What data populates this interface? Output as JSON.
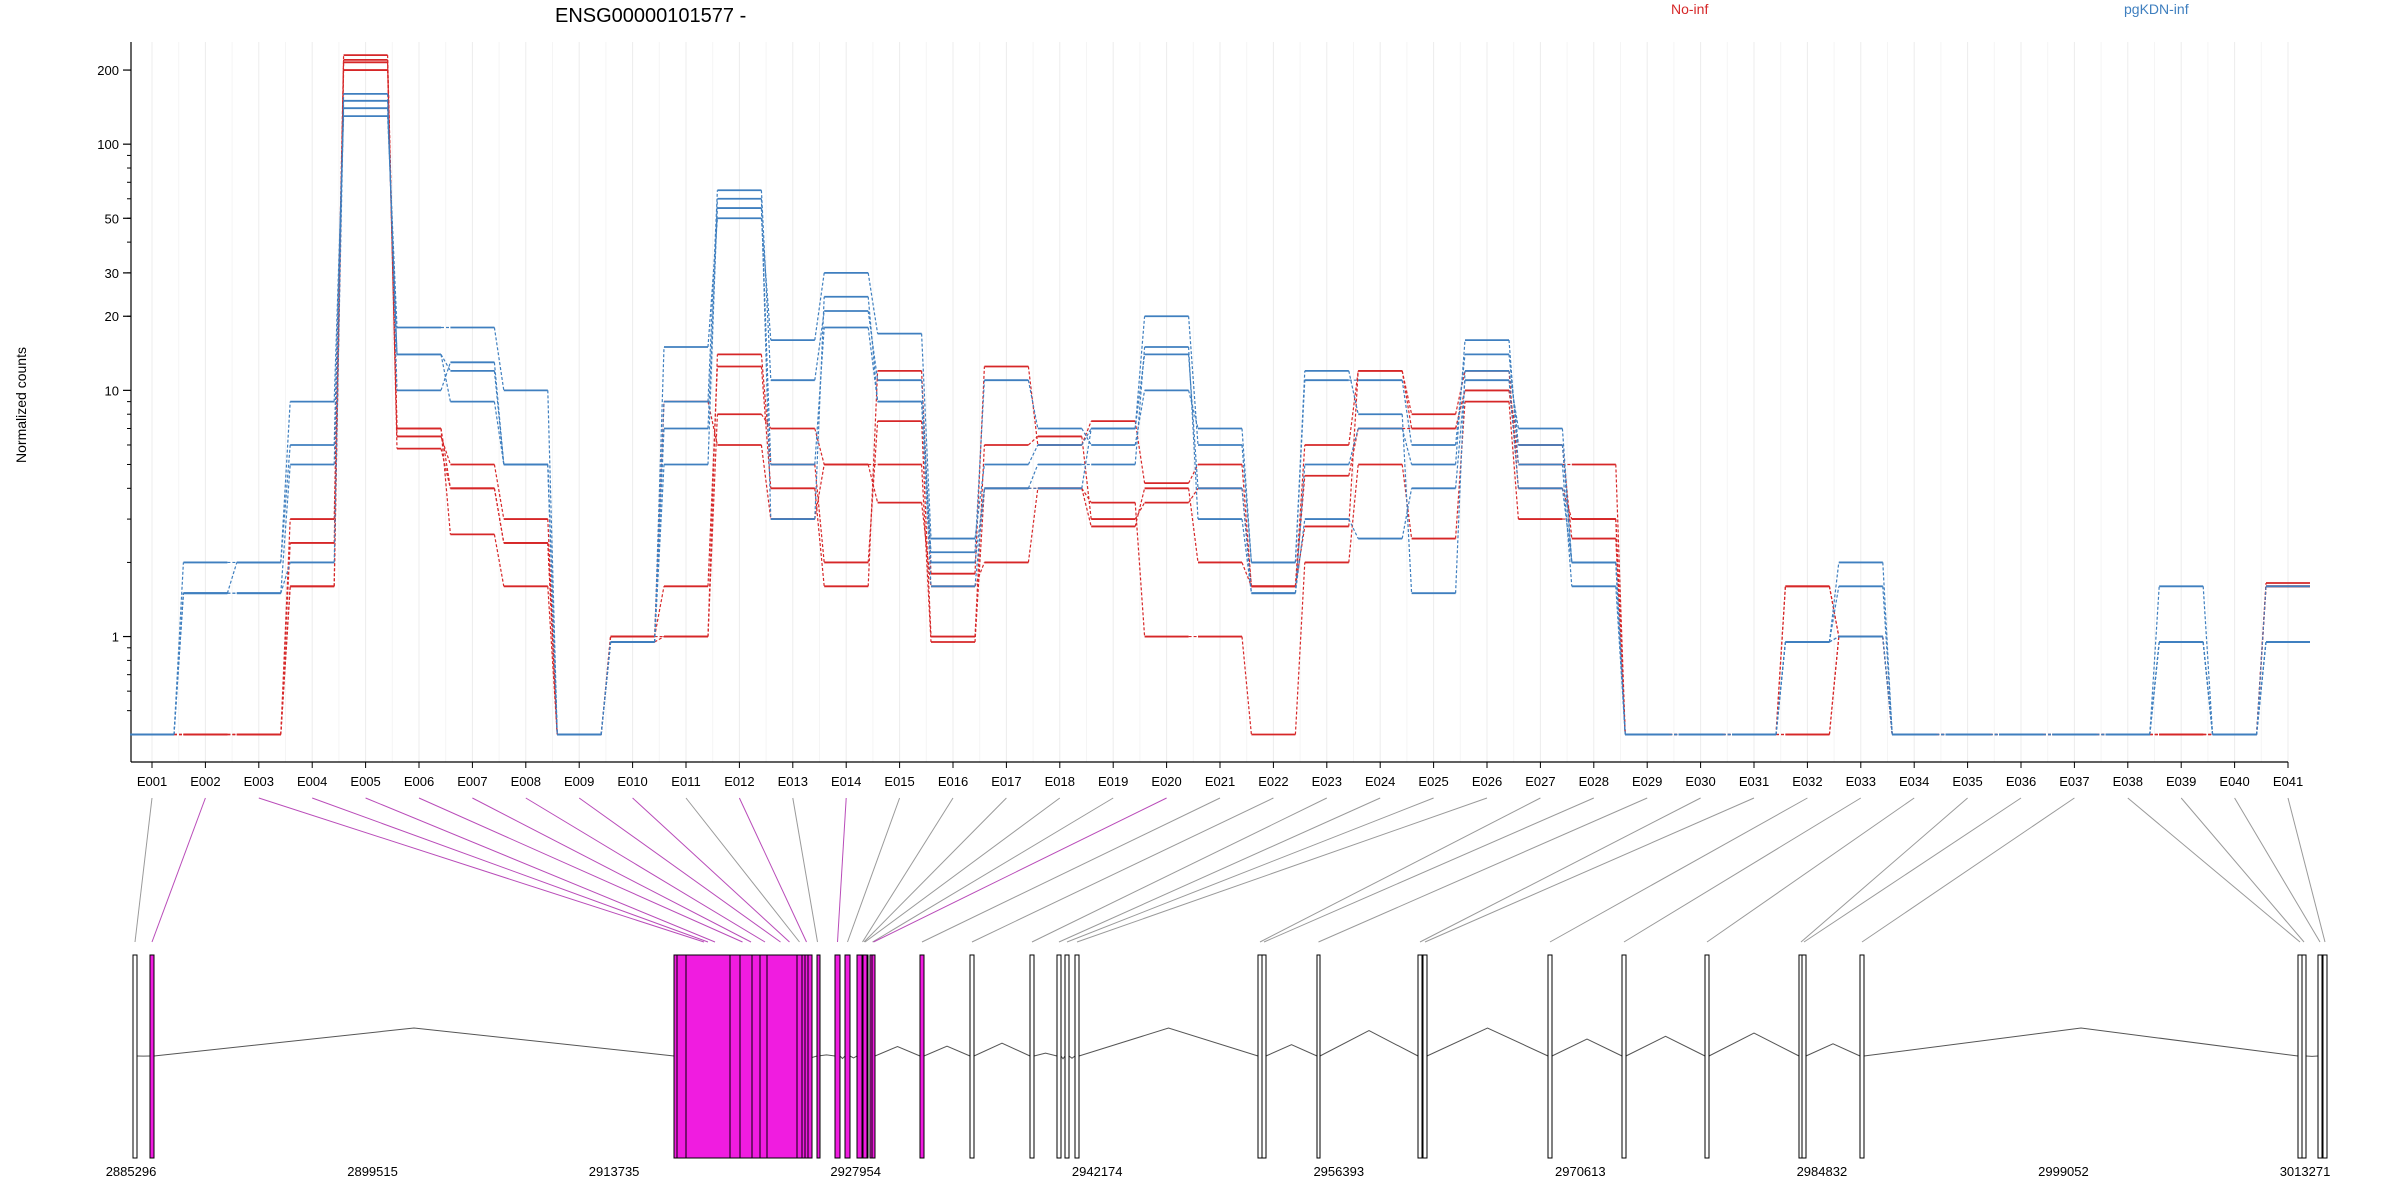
{
  "chart_data": {
    "type": "line",
    "title": "ENSG00000101577 -",
    "ylabel": "Normalized counts",
    "xlabel": "",
    "yscale": "log",
    "ylim": [
      0.38,
      260
    ],
    "yticks": [
      1,
      10,
      20,
      30,
      50,
      100,
      200
    ],
    "grid": "vertical",
    "legend_placement": "top",
    "colors": {
      "No-inf": "#d62728",
      "pgKDN-inf": "#3f7fbf",
      "highlight": "#f01ce0"
    },
    "categories": [
      "E001",
      "E002",
      "E003",
      "E004",
      "E005",
      "E006",
      "E007",
      "E008",
      "E009",
      "E010",
      "E011",
      "E012",
      "E013",
      "E014",
      "E015",
      "E016",
      "E017",
      "E018",
      "E019",
      "E020",
      "E021",
      "E022",
      "E023",
      "E024",
      "E025",
      "E026",
      "E027",
      "E028",
      "E029",
      "E030",
      "E031",
      "E032",
      "E033",
      "E034",
      "E035",
      "E036",
      "E037",
      "E038",
      "E039",
      "E040",
      "E041"
    ],
    "series": [
      {
        "name": "No-inf",
        "color": "#d62728",
        "values": [
          0.4,
          0.4,
          0.4,
          1.6,
          215,
          5.8,
          4,
          2.4,
          0.4,
          1,
          1.6,
          12.5,
          4,
          1.6,
          12,
          1.8,
          12.5,
          6,
          7.5,
          4.2,
          5,
          1.6,
          2.8,
          12,
          8,
          12,
          4,
          3,
          0.4,
          0.4,
          0.4,
          1.6,
          1,
          0.4,
          0.4,
          0.4,
          0.4,
          0.4,
          0.4,
          0.4,
          1.65
        ]
      },
      {
        "name": "No-inf",
        "color": "#d62728",
        "values": [
          0.4,
          0.4,
          0.4,
          2.4,
          200,
          6.5,
          5,
          3,
          0.4,
          0.95,
          1,
          14,
          5,
          2,
          7.5,
          1,
          6,
          6.5,
          3,
          3.5,
          4,
          1.6,
          4.5,
          7,
          7,
          10,
          5,
          5,
          0.4,
          0.4,
          0.4,
          0.4,
          1,
          0.4,
          0.4,
          0.4,
          0.4,
          0.4,
          0.4,
          0.4,
          1.6
        ]
      },
      {
        "name": "No-inf",
        "color": "#d62728",
        "values": [
          0.4,
          0.4,
          0.4,
          3,
          230,
          7,
          2.6,
          1.6,
          0.4,
          1,
          1,
          8,
          7,
          5,
          5,
          0.95,
          4,
          4,
          3.5,
          1,
          1,
          0.4,
          2,
          5,
          2.5,
          9,
          3,
          3,
          0.4,
          0.4,
          0.4,
          0.4,
          1,
          0.4,
          0.4,
          0.4,
          0.4,
          0.4,
          0.4,
          0.4,
          1.6
        ]
      },
      {
        "name": "No-inf",
        "color": "#d62728",
        "values": [
          0.4,
          0.4,
          0.4,
          1.6,
          220,
          7,
          4,
          2.4,
          0.4,
          1,
          9,
          6,
          3,
          5,
          3.5,
          1.6,
          2,
          4,
          2.8,
          4,
          2,
          1.6,
          6,
          12,
          7,
          10,
          6,
          2.5,
          0.4,
          0.4,
          0.4,
          1.6,
          1,
          0.4,
          0.4,
          0.4,
          0.4,
          0.4,
          0.4,
          0.4,
          1.6
        ]
      },
      {
        "name": "pgKDN-inf",
        "color": "#3f7fbf",
        "values": [
          0.4,
          1.5,
          1.5,
          2,
          150,
          14,
          12,
          5,
          0.4,
          0.95,
          15,
          50,
          16,
          30,
          17,
          2.5,
          5,
          6,
          7,
          20,
          6,
          2,
          11,
          11,
          6,
          14,
          6,
          2,
          0.4,
          0.4,
          0.4,
          0.95,
          2,
          0.4,
          0.4,
          0.4,
          0.4,
          0.4,
          0.95,
          0.4,
          0.95
        ]
      },
      {
        "name": "pgKDN-inf",
        "color": "#3f7fbf",
        "values": [
          0.4,
          2,
          2,
          9,
          130,
          18,
          18,
          10,
          0.4,
          0.95,
          7,
          55,
          5,
          18,
          9,
          2.2,
          11,
          7,
          6,
          10,
          7,
          2,
          12,
          8,
          1.5,
          12,
          7,
          2,
          0.4,
          0.4,
          0.4,
          0.95,
          1.6,
          0.4,
          0.4,
          0.4,
          0.4,
          0.4,
          1.6,
          0.4,
          1.6
        ]
      },
      {
        "name": "pgKDN-inf",
        "color": "#3f7fbf",
        "values": [
          0.4,
          1.5,
          2,
          6,
          160,
          10,
          13,
          5,
          0.4,
          0.95,
          9,
          65,
          11,
          21,
          11,
          2,
          4,
          5,
          5,
          15,
          3,
          1.5,
          5,
          7,
          5,
          16,
          5,
          1.6,
          0.4,
          0.4,
          0.4,
          0.95,
          1,
          0.4,
          0.4,
          0.4,
          0.4,
          0.4,
          0.95,
          0.4,
          0.95
        ]
      },
      {
        "name": "pgKDN-inf",
        "color": "#3f7fbf",
        "values": [
          0.4,
          1.5,
          1.5,
          5,
          140,
          14,
          9,
          5,
          0.4,
          0.95,
          5,
          60,
          3,
          24,
          9,
          1.6,
          4,
          4,
          7,
          14,
          4,
          1.5,
          3,
          2.5,
          4,
          11,
          4,
          2,
          0.4,
          0.4,
          0.4,
          0.95,
          1,
          0.4,
          0.4,
          0.4,
          0.4,
          0.4,
          0.95,
          0.4,
          0.95
        ]
      }
    ],
    "gene_model": {
      "coordinate_labels": [
        "2885296",
        "2899515",
        "2913735",
        "2927954",
        "2942174",
        "2956393",
        "2970613",
        "2984832",
        "2999052",
        "3013271"
      ],
      "highlighted_exons": [
        "E002",
        "E003",
        "E004",
        "E005",
        "E006",
        "E007",
        "E008",
        "E009",
        "E010",
        "E011",
        "E012",
        "E013",
        "E014",
        "E015",
        "E016",
        "E017",
        "E018",
        "E019",
        "E020",
        "E021"
      ]
    }
  }
}
